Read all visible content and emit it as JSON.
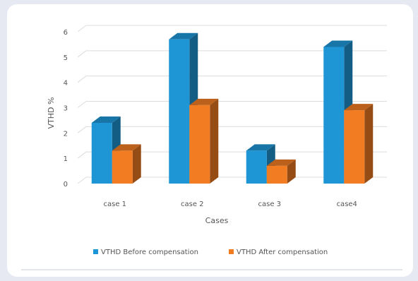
{
  "chart_data": {
    "type": "bar",
    "categories": [
      "case 1",
      "case 2",
      "case 3",
      "case4"
    ],
    "series": [
      {
        "name": "VTHD Before compensation",
        "values": [
          2.4,
          5.7,
          1.3,
          5.4
        ],
        "color": "#1e96d6"
      },
      {
        "name": "VTHD After compensation",
        "values": [
          1.3,
          3.1,
          0.7,
          2.9
        ],
        "color": "#f17c22"
      }
    ],
    "yticks": [
      "0",
      "1",
      "2",
      "3",
      "4",
      "5",
      "6"
    ],
    "ylim": [
      0,
      6
    ],
    "xlabel": "Cases",
    "ylabel": "VTHD %",
    "grid": true,
    "legend_position": "bottom",
    "style": "3d-bars"
  }
}
